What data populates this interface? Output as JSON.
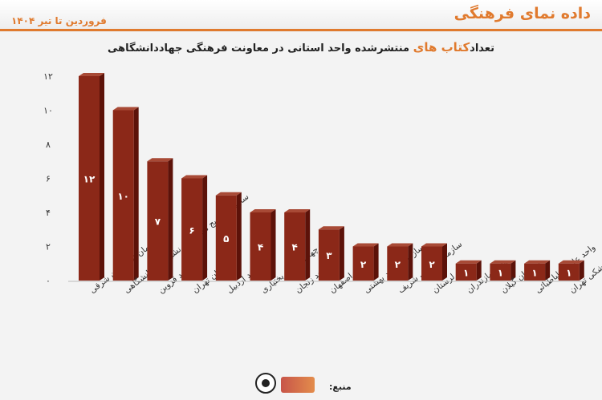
{
  "header": {
    "brand": "داده نمای فرهنگی",
    "period": "فروردین تا تیر ۱۴۰۴"
  },
  "chart_data": {
    "type": "bar",
    "title_pre": "تعداد",
    "title_highlight": "کتاب های",
    "title_post": " منتشرشده واحد استانی در معاونت فرهنگی جهاددانشگاهی",
    "categories": [
      "سازمان آذربایجان شرقی",
      "سازمان ترویج مطالعه و نشر جهاد دانشگاهی",
      "واحد قزوین",
      "سازمان تهران",
      "واحد اردبیل",
      "واحد چهارمحال و بختیاری",
      "واحد زنجان",
      "واحد اصفهان",
      "سازمان شهید بهشتی",
      "سازمان صنعتی شریف",
      "واحد لرستان",
      "واحد مازندران",
      "سازمان گیلان",
      "واحد علامه طباطبائی",
      "سازمان علوم پزشکی تهران"
    ],
    "values": [
      12,
      10,
      7,
      6,
      5,
      4,
      4,
      3,
      2,
      2,
      2,
      1,
      1,
      1,
      1
    ],
    "value_labels": [
      "۱۲",
      "۱۰",
      "۷",
      "۶",
      "۵",
      "۴",
      "۴",
      "۳",
      "۲",
      "۲",
      "۲",
      "۱",
      "۱",
      "۱",
      "۱"
    ],
    "y_ticks": [
      0,
      2,
      4,
      6,
      8,
      10,
      12
    ],
    "y_tick_labels": [
      "۰",
      "۲",
      "۴",
      "۶",
      "۸",
      "۱۰",
      "۱۲"
    ],
    "ylim": [
      0,
      12
    ],
    "grid": false,
    "colors": {
      "front": "#8b2818",
      "side": "#5c1209",
      "top": "#a84a36",
      "accent": "#e07a2e"
    }
  },
  "footer": {
    "source_label": "منبع:"
  }
}
